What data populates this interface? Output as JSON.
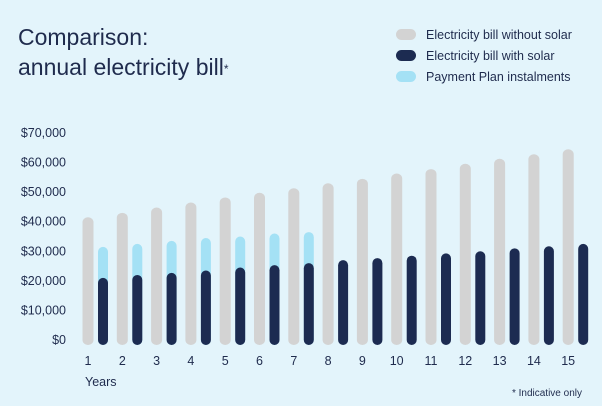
{
  "chart_data": {
    "type": "bar",
    "title": "Comparison:",
    "subtitle": "annual electricity bill",
    "title_marker": "*",
    "xlabel": "Years",
    "ylabel": "",
    "ylim": [
      0,
      70000
    ],
    "y_ticks": [
      0,
      10000,
      20000,
      30000,
      40000,
      50000,
      60000,
      70000
    ],
    "y_tick_labels": [
      "$0",
      "$10,000",
      "$20,000",
      "$30,000",
      "$40,000",
      "$50,000",
      "$60,000",
      "$70,000"
    ],
    "categories": [
      "1",
      "2",
      "3",
      "4",
      "5",
      "6",
      "7",
      "8",
      "9",
      "10",
      "11",
      "12",
      "13",
      "14",
      "15"
    ],
    "grid": false,
    "legend_position": "top-right",
    "series": [
      {
        "name": "Electricity bill without solar",
        "color": "#d3d3d3",
        "values": [
          41500,
          43000,
          44800,
          46500,
          48200,
          49800,
          51300,
          53000,
          54500,
          56300,
          57800,
          59600,
          61300,
          62800,
          64500
        ]
      },
      {
        "name": "Electricity bill with solar",
        "color": "#1c2b51",
        "values": [
          21000,
          22000,
          22700,
          23500,
          24500,
          25300,
          26000,
          27000,
          27700,
          28500,
          29300,
          30000,
          31000,
          31700,
          32500
        ]
      },
      {
        "name": "Payment Plan instalments",
        "color": "#a4e1f5",
        "values": [
          31500,
          32500,
          33500,
          34500,
          35000,
          36000,
          36500,
          null,
          null,
          null,
          null,
          null,
          null,
          null,
          null
        ]
      }
    ],
    "footnote": "* Indicative only"
  }
}
